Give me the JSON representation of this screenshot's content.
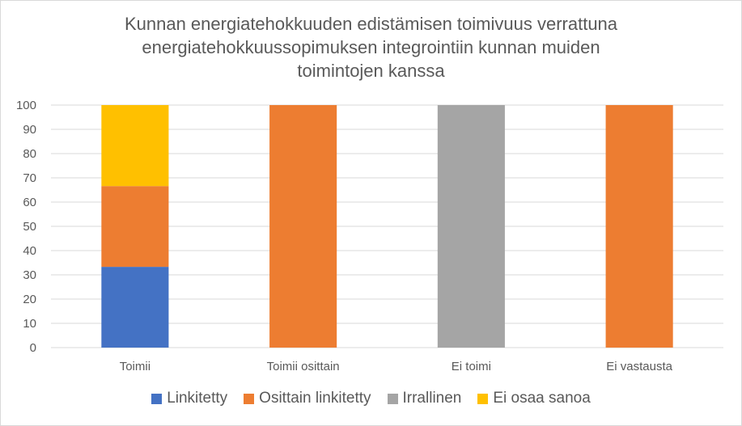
{
  "chart_data": {
    "type": "bar",
    "stacked": true,
    "title_lines": [
      "Kunnan energiatehokkuuden edistämisen toimivuus verrattuna",
      "energiatehokkuussopimuksen integrointiin kunnan muiden",
      "toimintojen kanssa"
    ],
    "categories": [
      "Toimii",
      "Toimii osittain",
      "Ei toimi",
      "Ei vastausta"
    ],
    "series": [
      {
        "name": "Linkitetty",
        "color": "#4472c4",
        "values": [
          33.3,
          0,
          0,
          0
        ]
      },
      {
        "name": "Osittain linkitetty",
        "color": "#ed7d31",
        "values": [
          33.3,
          100,
          0,
          100
        ]
      },
      {
        "name": "Irrallinen",
        "color": "#a5a5a5",
        "values": [
          0,
          0,
          100,
          0
        ]
      },
      {
        "name": "Ei osaa sanoa",
        "color": "#ffc000",
        "values": [
          33.4,
          0,
          0,
          0
        ]
      }
    ],
    "ylim": [
      0,
      100
    ],
    "yticks": [
      0,
      10,
      20,
      30,
      40,
      50,
      60,
      70,
      80,
      90,
      100
    ],
    "grid": true,
    "legend": "bottom"
  }
}
